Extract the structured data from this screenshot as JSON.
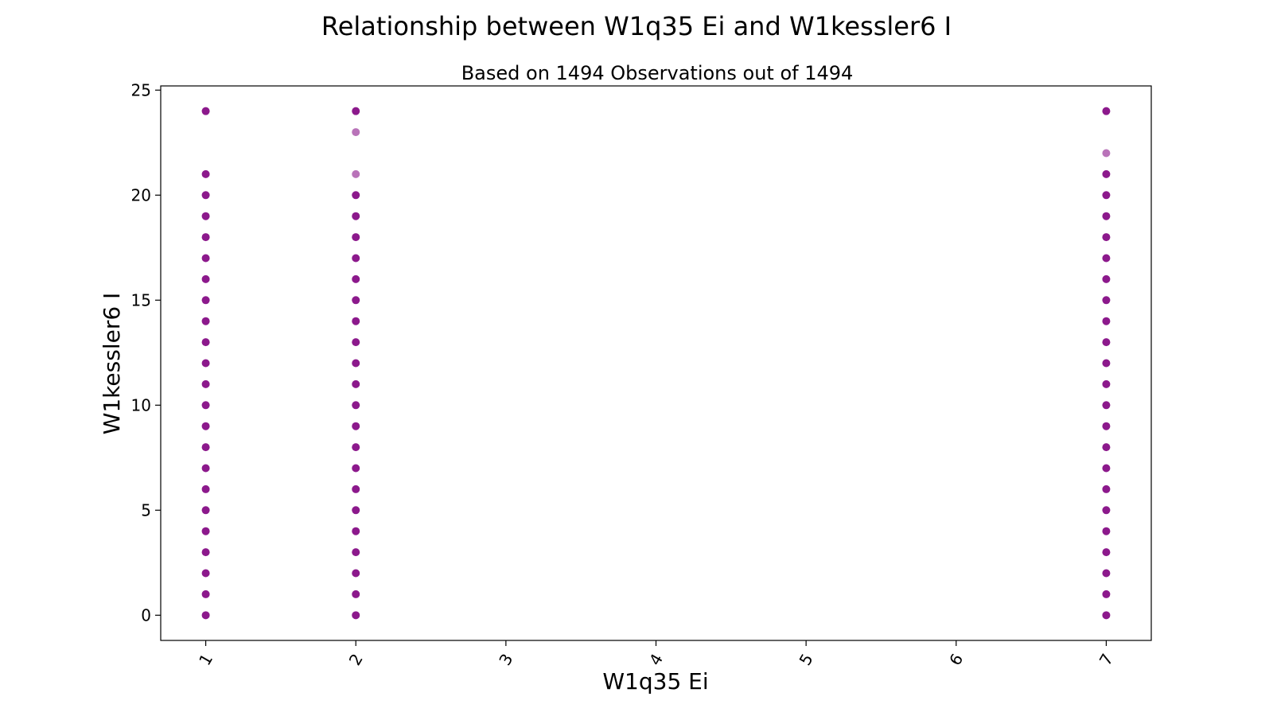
{
  "chart_data": {
    "type": "scatter",
    "title": "Relationship between W1q35 Ei and W1kessler6 I",
    "subtitle": "Based on 1494 Observations out of 1494",
    "xlabel": "W1q35 Ei",
    "ylabel": "W1kessler6 I",
    "xlim": [
      0.7,
      7.3
    ],
    "ylim": [
      -1.2,
      25.2
    ],
    "xticks": [
      1,
      2,
      3,
      4,
      5,
      6,
      7
    ],
    "yticks": [
      0,
      5,
      10,
      15,
      20,
      25
    ],
    "grid": false,
    "marker_color": "#800080",
    "series": [
      {
        "points": [
          {
            "x": 1,
            "y": [
              0,
              1,
              2,
              3,
              4,
              5,
              6,
              7,
              8,
              9,
              10,
              11,
              12,
              13,
              14,
              15,
              16,
              17,
              18,
              19,
              20,
              21,
              24
            ]
          },
          {
            "x": 2,
            "y": [
              0,
              1,
              2,
              3,
              4,
              5,
              6,
              7,
              8,
              9,
              10,
              11,
              12,
              13,
              14,
              15,
              16,
              17,
              18,
              19,
              20,
              21,
              23,
              24
            ]
          },
          {
            "x": 7,
            "y": [
              0,
              1,
              2,
              3,
              4,
              5,
              6,
              7,
              8,
              9,
              10,
              11,
              12,
              13,
              14,
              15,
              16,
              17,
              18,
              19,
              20,
              21,
              22,
              24
            ]
          }
        ],
        "faint_points": [
          {
            "x": 2,
            "y": [
              21,
              23
            ]
          },
          {
            "x": 7,
            "y": [
              22
            ]
          }
        ]
      }
    ]
  }
}
